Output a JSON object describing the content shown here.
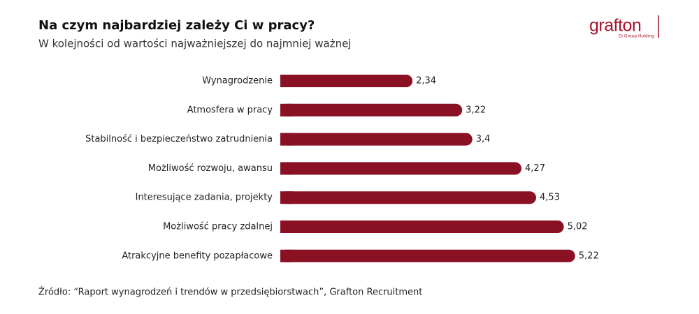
{
  "chart_data": {
    "type": "bar",
    "orientation": "horizontal",
    "title": "Na czym najbardziej zależy Ci w pracy?",
    "subtitle": "W kolejności od wartości najważniejszej do najmniej ważnej",
    "categories": [
      "Wynagrodzenie",
      "Atmosfera w pracy",
      "Stabilność i bezpieczeństwo zatrudnienia",
      "Możliwość rozwoju, awansu",
      "Interesujące zadania, projekty",
      "Możliwość pracy zdalnej",
      "Atrakcyjne benefity pozapłacowe"
    ],
    "values": [
      2.34,
      3.22,
      3.4,
      4.27,
      4.53,
      5.02,
      5.22
    ],
    "value_labels": [
      "2,34",
      "3,22",
      "3,4",
      "4,27",
      "4,53",
      "5,02",
      "5,22"
    ],
    "color": "#8a1024",
    "source": "Źródło: “Raport wynagrodzeń i trendów w przedsiębiorstwach”,  Grafton Recruitment"
  },
  "logo": {
    "name": "grafton",
    "tagline": "Gi Group Holding"
  }
}
